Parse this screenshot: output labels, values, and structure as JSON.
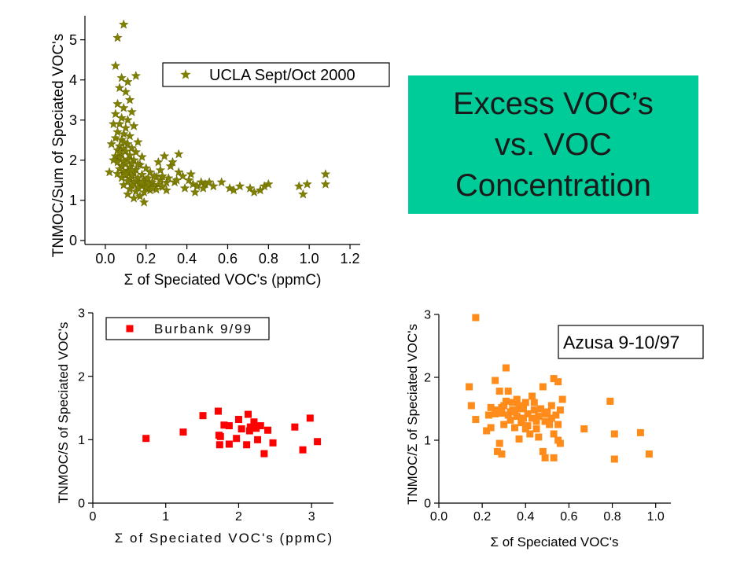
{
  "slide_title": {
    "lines": [
      "Excess VOC’s",
      "vs. VOC",
      "Concentration"
    ],
    "background": "#00cc99"
  },
  "chart_data": [
    {
      "type": "scatter",
      "xlabel": "Σ of Speciated VOC's (ppmC)",
      "ylabel": "TNMOC/Sum of Speciated VOC's",
      "xlim": [
        -0.1,
        1.25
      ],
      "ylim": [
        -0.1,
        5.6
      ],
      "xticks": [
        0.0,
        0.2,
        0.4,
        0.6,
        0.8,
        1.0,
        1.2
      ],
      "xtick_labels": [
        "0.0",
        "0.2",
        "0.4",
        "0.6",
        "0.8",
        "1.0",
        "1.2"
      ],
      "yticks": [
        0,
        1,
        2,
        3,
        4,
        5
      ],
      "ytick_labels": [
        "0",
        "1",
        "2",
        "3",
        "4",
        "5"
      ],
      "grid": false,
      "legend_position": "top-right",
      "marker": "star",
      "series": [
        {
          "name": "UCLA Sept/Oct 2000",
          "color": "#808000",
          "points": [
            [
              0.09,
              5.38
            ],
            [
              0.06,
              5.05
            ],
            [
              0.05,
              4.35
            ],
            [
              0.15,
              4.1
            ],
            [
              0.08,
              4.05
            ],
            [
              0.11,
              3.95
            ],
            [
              0.07,
              3.8
            ],
            [
              0.1,
              3.7
            ],
            [
              0.12,
              3.5
            ],
            [
              0.06,
              3.4
            ],
            [
              0.09,
              3.3
            ],
            [
              0.13,
              3.2
            ],
            [
              0.05,
              3.15
            ],
            [
              0.08,
              3.05
            ],
            [
              0.11,
              3.0
            ],
            [
              0.07,
              2.9
            ],
            [
              0.14,
              2.85
            ],
            [
              0.1,
              2.8
            ],
            [
              0.06,
              2.7
            ],
            [
              0.09,
              2.65
            ],
            [
              0.12,
              2.6
            ],
            [
              0.05,
              2.55
            ],
            [
              0.08,
              2.5
            ],
            [
              0.16,
              2.45
            ],
            [
              0.11,
              2.4
            ],
            [
              0.07,
              2.35
            ],
            [
              0.13,
              2.3
            ],
            [
              0.09,
              2.28
            ],
            [
              0.06,
              2.25
            ],
            [
              0.1,
              2.22
            ],
            [
              0.15,
              2.2
            ],
            [
              0.08,
              2.15
            ],
            [
              0.12,
              2.12
            ],
            [
              0.05,
              2.1
            ],
            [
              0.18,
              2.08
            ],
            [
              0.07,
              2.05
            ],
            [
              0.11,
              2.02
            ],
            [
              0.14,
              2.0
            ],
            [
              0.09,
              1.98
            ],
            [
              0.06,
              1.95
            ],
            [
              0.13,
              1.92
            ],
            [
              0.1,
              1.9
            ],
            [
              0.17,
              1.88
            ],
            [
              0.08,
              1.85
            ],
            [
              0.12,
              1.82
            ],
            [
              0.2,
              1.8
            ],
            [
              0.07,
              1.78
            ],
            [
              0.15,
              1.76
            ],
            [
              0.11,
              1.74
            ],
            [
              0.09,
              1.72
            ],
            [
              0.22,
              1.7
            ],
            [
              0.14,
              1.68
            ],
            [
              0.06,
              1.66
            ],
            [
              0.18,
              1.64
            ],
            [
              0.1,
              1.62
            ],
            [
              0.13,
              1.6
            ],
            [
              0.25,
              1.58
            ],
            [
              0.08,
              1.56
            ],
            [
              0.16,
              1.55
            ],
            [
              0.12,
              1.53
            ],
            [
              0.2,
              1.52
            ],
            [
              0.27,
              1.5
            ],
            [
              0.11,
              1.48
            ],
            [
              0.15,
              1.47
            ],
            [
              0.19,
              1.46
            ],
            [
              0.23,
              1.45
            ],
            [
              0.3,
              1.44
            ],
            [
              0.14,
              1.43
            ],
            [
              0.17,
              1.42
            ],
            [
              0.21,
              1.4
            ],
            [
              0.26,
              1.39
            ],
            [
              0.09,
              1.38
            ],
            [
              0.13,
              1.37
            ],
            [
              0.18,
              1.35
            ],
            [
              0.24,
              1.34
            ],
            [
              0.28,
              1.33
            ],
            [
              0.16,
              1.32
            ],
            [
              0.2,
              1.3
            ],
            [
              0.12,
              1.28
            ],
            [
              0.25,
              1.27
            ],
            [
              0.22,
              1.25
            ],
            [
              0.15,
              1.22
            ],
            [
              0.19,
              1.2
            ],
            [
              0.11,
              1.15
            ],
            [
              0.17,
              1.1
            ],
            [
              0.14,
              1.05
            ],
            [
              0.19,
              0.95
            ],
            [
              0.24,
              1.6
            ],
            [
              0.27,
              1.75
            ],
            [
              0.29,
              2.1
            ],
            [
              0.26,
              1.95
            ],
            [
              0.32,
              1.85
            ],
            [
              0.31,
              1.55
            ],
            [
              0.34,
              1.45
            ],
            [
              0.36,
              1.7
            ],
            [
              0.38,
              1.6
            ],
            [
              0.41,
              1.5
            ],
            [
              0.43,
              1.4
            ],
            [
              0.45,
              1.35
            ],
            [
              0.42,
              1.65
            ],
            [
              0.39,
              1.3
            ],
            [
              0.44,
              1.2
            ],
            [
              0.47,
              1.45
            ],
            [
              0.49,
              1.4
            ],
            [
              0.51,
              1.45
            ],
            [
              0.48,
              1.3
            ],
            [
              0.53,
              1.35
            ],
            [
              0.57,
              1.45
            ],
            [
              0.61,
              1.3
            ],
            [
              0.63,
              1.25
            ],
            [
              0.66,
              1.35
            ],
            [
              0.71,
              1.3
            ],
            [
              0.73,
              1.2
            ],
            [
              0.76,
              1.25
            ],
            [
              0.78,
              1.35
            ],
            [
              0.8,
              1.4
            ],
            [
              0.95,
              1.35
            ],
            [
              0.97,
              1.15
            ],
            [
              0.99,
              1.4
            ],
            [
              1.08,
              1.65
            ],
            [
              1.08,
              1.4
            ],
            [
              0.36,
              2.15
            ],
            [
              0.33,
              1.95
            ],
            [
              0.02,
              1.7
            ],
            [
              0.04,
              2.0
            ],
            [
              0.03,
              2.4
            ],
            [
              0.04,
              2.9
            ],
            [
              0.18,
              1.45
            ],
            [
              0.21,
              1.55
            ],
            [
              0.23,
              1.3
            ],
            [
              0.1,
              1.65
            ],
            [
              0.07,
              2.2
            ],
            [
              0.09,
              2.45
            ],
            [
              0.16,
              1.9
            ],
            [
              0.13,
              1.75
            ],
            [
              0.35,
              1.5
            ],
            [
              0.3,
              1.25
            ],
            [
              0.28,
              1.6
            ]
          ]
        }
      ]
    },
    {
      "type": "scatter",
      "xlabel": "Σ of Speciated VOC's (ppmC)",
      "ylabel": "TNMOC/S of Speciated VOC's",
      "xlim": [
        0,
        3.3
      ],
      "ylim": [
        0,
        3
      ],
      "xticks": [
        0,
        1,
        2,
        3
      ],
      "xtick_labels": [
        "0",
        "1",
        "2",
        "3"
      ],
      "yticks": [
        0,
        1,
        2,
        3
      ],
      "ytick_labels": [
        "0",
        "1",
        "2",
        "3"
      ],
      "grid": false,
      "legend_position": "top-left",
      "marker": "square",
      "series": [
        {
          "name": "Burbank 9/99",
          "color": "#ff0000",
          "points": [
            [
              0.73,
              1.02
            ],
            [
              1.24,
              1.12
            ],
            [
              1.51,
              1.38
            ],
            [
              1.72,
              1.45
            ],
            [
              1.73,
              1.07
            ],
            [
              1.75,
              1.05
            ],
            [
              1.74,
              0.92
            ],
            [
              1.8,
              1.23
            ],
            [
              1.87,
              0.93
            ],
            [
              1.87,
              1.22
            ],
            [
              1.97,
              1.02
            ],
            [
              2.0,
              1.32
            ],
            [
              2.04,
              1.17
            ],
            [
              2.11,
              0.92
            ],
            [
              2.13,
              1.4
            ],
            [
              2.15,
              1.14
            ],
            [
              2.16,
              1.2
            ],
            [
              2.21,
              1.28
            ],
            [
              2.24,
              1.18
            ],
            [
              2.26,
              1.0
            ],
            [
              2.3,
              1.22
            ],
            [
              2.35,
              0.78
            ],
            [
              2.4,
              1.15
            ],
            [
              2.47,
              0.95
            ],
            [
              2.77,
              1.2
            ],
            [
              2.88,
              0.84
            ],
            [
              2.98,
              1.34
            ],
            [
              3.08,
              0.97
            ]
          ]
        }
      ]
    },
    {
      "type": "scatter",
      "xlabel": "Σ of Speciated VOC's",
      "ylabel": "TNMOC/Σ of Speciated VOC's",
      "xlim": [
        0,
        1.07
      ],
      "ylim": [
        0,
        3
      ],
      "xticks": [
        0.0,
        0.2,
        0.4,
        0.6,
        0.8,
        1.0
      ],
      "xtick_labels": [
        "0.0",
        "0.2",
        "0.4",
        "0.6",
        "0.8",
        "1.0"
      ],
      "yticks": [
        0,
        1,
        2,
        3
      ],
      "ytick_labels": [
        "0",
        "1",
        "2",
        "3"
      ],
      "grid": false,
      "legend_position": "top-right",
      "marker": "square",
      "series": [
        {
          "name": "Azusa 9-10/97",
          "color": "#ff8c1a",
          "points": [
            [
              0.17,
              2.95
            ],
            [
              0.31,
              2.15
            ],
            [
              0.14,
              1.85
            ],
            [
              0.26,
              1.95
            ],
            [
              0.28,
              1.78
            ],
            [
              0.32,
              1.78
            ],
            [
              0.15,
              1.55
            ],
            [
              0.17,
              1.33
            ],
            [
              0.23,
              1.4
            ],
            [
              0.24,
              1.52
            ],
            [
              0.26,
              1.42
            ],
            [
              0.27,
              1.48
            ],
            [
              0.29,
              1.52
            ],
            [
              0.29,
              1.43
            ],
            [
              0.3,
              1.25
            ],
            [
              0.3,
              1.55
            ],
            [
              0.31,
              1.62
            ],
            [
              0.32,
              1.4
            ],
            [
              0.33,
              1.32
            ],
            [
              0.34,
              1.6
            ],
            [
              0.34,
              1.48
            ],
            [
              0.35,
              1.45
            ],
            [
              0.35,
              1.2
            ],
            [
              0.36,
              1.38
            ],
            [
              0.36,
              1.65
            ],
            [
              0.37,
              1.55
            ],
            [
              0.38,
              1.28
            ],
            [
              0.38,
              1.5
            ],
            [
              0.39,
              1.35
            ],
            [
              0.4,
              1.6
            ],
            [
              0.4,
              1.18
            ],
            [
              0.41,
              1.42
            ],
            [
              0.41,
              1.23
            ],
            [
              0.42,
              1.1
            ],
            [
              0.43,
              1.7
            ],
            [
              0.43,
              1.35
            ],
            [
              0.44,
              1.48
            ],
            [
              0.45,
              1.3
            ],
            [
              0.45,
              1.18
            ],
            [
              0.46,
              1.38
            ],
            [
              0.47,
              1.5
            ],
            [
              0.48,
              1.85
            ],
            [
              0.49,
              1.42
            ],
            [
              0.49,
              1.3
            ],
            [
              0.5,
              1.45
            ],
            [
              0.51,
              1.25
            ],
            [
              0.52,
              1.55
            ],
            [
              0.52,
              1.35
            ],
            [
              0.53,
              1.98
            ],
            [
              0.53,
              1.1
            ],
            [
              0.54,
              1.4
            ],
            [
              0.55,
              1.93
            ],
            [
              0.55,
              1.25
            ],
            [
              0.56,
              1.48
            ],
            [
              0.57,
              1.65
            ],
            [
              0.55,
              1.0
            ],
            [
              0.56,
              0.95
            ],
            [
              0.28,
              0.95
            ],
            [
              0.27,
              0.82
            ],
            [
              0.29,
              0.78
            ],
            [
              0.22,
              1.15
            ],
            [
              0.24,
              1.2
            ],
            [
              0.48,
              0.82
            ],
            [
              0.49,
              0.72
            ],
            [
              0.53,
              0.72
            ],
            [
              0.67,
              1.18
            ],
            [
              0.79,
              1.62
            ],
            [
              0.81,
              1.1
            ],
            [
              0.81,
              0.7
            ],
            [
              0.93,
              1.12
            ],
            [
              0.97,
              0.78
            ],
            [
              0.37,
              1.02
            ],
            [
              0.44,
              1.6
            ],
            [
              0.46,
              1.05
            ],
            [
              0.33,
              1.45
            ],
            [
              0.39,
              1.52
            ]
          ]
        }
      ]
    }
  ]
}
